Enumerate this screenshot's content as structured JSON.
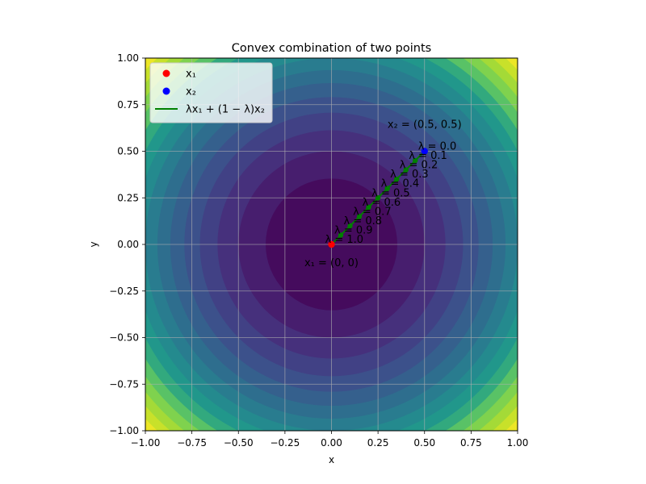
{
  "chart_data": {
    "type": "line",
    "title": "Convex combination of two points",
    "xlabel": "x",
    "ylabel": "y",
    "xlim": [
      -1.0,
      1.0
    ],
    "ylim": [
      -1.0,
      1.0
    ],
    "x_ticks": [
      "−1.00",
      "−0.75",
      "−0.50",
      "−0.25",
      "0.00",
      "0.25",
      "0.50",
      "0.75",
      "1.00"
    ],
    "y_ticks": [
      "−1.00",
      "−0.75",
      "−0.50",
      "−0.25",
      "0.00",
      "0.25",
      "0.50",
      "0.75",
      "1.00"
    ],
    "grid": true,
    "legend_location": "top-left",
    "background": {
      "type": "contourf",
      "field": "x^2 + y^2",
      "colormap": "viridis"
    },
    "points": [
      {
        "name": "x₁",
        "x": 0.0,
        "y": 0.0,
        "color": "#ff0000",
        "annotation": "x₁ = (0, 0)"
      },
      {
        "name": "x₂",
        "x": 0.5,
        "y": 0.5,
        "color": "#0000ff",
        "annotation": "x₂ = (0.5, 0.5)"
      }
    ],
    "series": [
      {
        "name": "λx₁ + (1 − λ)x₂",
        "color": "#008000",
        "x": [
          0.5,
          0.45,
          0.4,
          0.35,
          0.3,
          0.25,
          0.2,
          0.15,
          0.1,
          0.05,
          0.0
        ],
        "y": [
          0.5,
          0.45,
          0.4,
          0.35,
          0.3,
          0.25,
          0.2,
          0.15,
          0.1,
          0.05,
          0.0
        ],
        "lambda": [
          0.0,
          0.1,
          0.2,
          0.3,
          0.4,
          0.5,
          0.6,
          0.7,
          0.8,
          0.9,
          1.0
        ]
      }
    ],
    "lambda_labels": [
      "λ = 0.0",
      "λ = 0.1",
      "λ = 0.2",
      "λ = 0.3",
      "λ = 0.4",
      "λ = 0.5",
      "λ = 0.6",
      "λ = 0.7",
      "λ = 0.8",
      "λ = 0.9",
      "λ = 1.0"
    ],
    "legend": [
      {
        "label": "x₁",
        "marker": "dot",
        "color": "#ff0000"
      },
      {
        "label": "x₂",
        "marker": "dot",
        "color": "#0000ff"
      },
      {
        "label": "λx₁ + (1 − λ)x₂",
        "marker": "line",
        "color": "#008000"
      }
    ]
  }
}
